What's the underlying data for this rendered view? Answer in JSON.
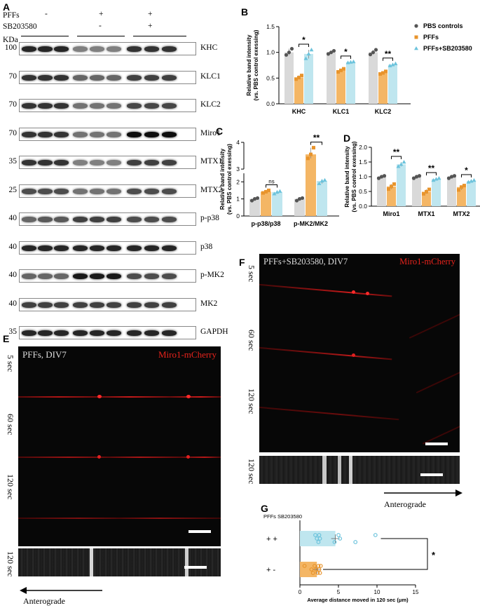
{
  "panel_letters": {
    "a": "A",
    "b": "B",
    "c": "C",
    "d": "D",
    "e": "E",
    "f": "F",
    "g": "G"
  },
  "western": {
    "kda_label": "KDa",
    "treatments": [
      {
        "name": "PFFs",
        "signs": [
          "-",
          "+",
          "+"
        ]
      },
      {
        "name": "SB203580",
        "signs": [
          "",
          "-",
          "+"
        ]
      }
    ],
    "blots": [
      {
        "mw": "100",
        "protein": "KHC",
        "intensity": [
          0.85,
          0.85,
          0.85,
          0.5,
          0.5,
          0.5,
          0.8,
          0.8,
          0.8
        ]
      },
      {
        "mw": "70",
        "protein": "KLC1",
        "intensity": [
          0.8,
          0.8,
          0.8,
          0.6,
          0.6,
          0.6,
          0.75,
          0.75,
          0.75
        ]
      },
      {
        "mw": "70",
        "protein": "KLC2",
        "intensity": [
          0.8,
          0.8,
          0.8,
          0.55,
          0.55,
          0.55,
          0.72,
          0.72,
          0.72
        ]
      },
      {
        "mw": "70",
        "protein": "Miro1",
        "intensity": [
          0.8,
          0.8,
          0.8,
          0.55,
          0.55,
          0.55,
          0.95,
          0.95,
          0.95
        ]
      },
      {
        "mw": "35",
        "protein": "MTX1",
        "intensity": [
          0.8,
          0.8,
          0.8,
          0.5,
          0.5,
          0.5,
          0.75,
          0.75,
          0.75
        ]
      },
      {
        "mw": "25",
        "protein": "MTX2",
        "intensity": [
          0.7,
          0.7,
          0.7,
          0.55,
          0.55,
          0.55,
          0.7,
          0.7,
          0.7
        ]
      },
      {
        "mw": "40",
        "protein": "p-p38",
        "intensity": [
          0.6,
          0.65,
          0.65,
          0.75,
          0.75,
          0.75,
          0.7,
          0.7,
          0.7
        ]
      },
      {
        "mw": "40",
        "protein": "p38",
        "intensity": [
          0.85,
          0.85,
          0.85,
          0.85,
          0.85,
          0.85,
          0.85,
          0.85,
          0.85
        ]
      },
      {
        "mw": "40",
        "protein": "p-MK2",
        "intensity": [
          0.6,
          0.6,
          0.6,
          0.9,
          0.9,
          0.9,
          0.7,
          0.7,
          0.7
        ]
      },
      {
        "mw": "40",
        "protein": "MK2",
        "intensity": [
          0.75,
          0.75,
          0.75,
          0.75,
          0.75,
          0.75,
          0.75,
          0.75,
          0.75
        ]
      },
      {
        "mw": "35",
        "protein": "GAPDH",
        "intensity": [
          0.85,
          0.85,
          0.85,
          0.85,
          0.85,
          0.85,
          0.85,
          0.85,
          0.85
        ]
      }
    ]
  },
  "colors": {
    "pbs": "#d9d9d9",
    "pffs": "#f4b665",
    "sb": "#bfe6ef",
    "pbs_dot": "#555555",
    "pffs_dot": "#e8942c",
    "sb_dot": "#6cc3dc",
    "red_label": "#e8231c"
  },
  "chart_data": [
    {
      "panel": "B",
      "type": "bar",
      "categories": [
        "KHC",
        "KLC1",
        "KLC2"
      ],
      "series": [
        {
          "name": "PBS controls",
          "values": [
            1.0,
            1.0,
            1.0
          ],
          "points": [
            [
              0.95,
              1.0,
              1.07
            ],
            [
              0.97,
              1.0,
              1.03
            ],
            [
              0.96,
              1.0,
              1.05
            ]
          ]
        },
        {
          "name": "PFFs",
          "values": [
            0.51,
            0.65,
            0.6
          ],
          "points": [
            [
              0.48,
              0.51,
              0.55
            ],
            [
              0.62,
              0.65,
              0.68
            ],
            [
              0.58,
              0.6,
              0.63
            ]
          ]
        },
        {
          "name": "PFFs+SB203580",
          "values": [
            0.97,
            0.81,
            0.76
          ],
          "points": [
            [
              0.88,
              0.97,
              1.05
            ],
            [
              0.8,
              0.81,
              0.82
            ],
            [
              0.74,
              0.76,
              0.78
            ]
          ]
        }
      ],
      "ylabel": "Relative band intensity\n(vs. PBS control exessing)",
      "ylim": [
        0,
        1.5
      ],
      "yticks": [
        0.0,
        0.5,
        1.0,
        1.5
      ],
      "significance": [
        "*",
        "*",
        "**"
      ],
      "legend": "top-right"
    },
    {
      "panel": "C",
      "type": "bar",
      "categories": [
        "p-p38/p38",
        "p-MK2/MK2"
      ],
      "series": [
        {
          "name": "PBS controls",
          "values": [
            1.0,
            1.0
          ],
          "points": [
            [
              0.9,
              1.0,
              1.05
            ],
            [
              0.9,
              1.0,
              1.05
            ]
          ]
        },
        {
          "name": "PFFs",
          "values": [
            1.42,
            3.55
          ],
          "points": [
            [
              1.35,
              1.42,
              1.5
            ],
            [
              3.4,
              3.55,
              3.8
            ]
          ]
        },
        {
          "name": "PFFs+SB203580",
          "values": [
            1.4,
            2.05
          ],
          "points": [
            [
              1.3,
              1.4,
              1.45
            ],
            [
              1.9,
              2.05,
              2.1
            ]
          ]
        }
      ],
      "ylabel": "Relative band intensity\n(vs. PBS control exessing)",
      "ylim": [
        0,
        4
      ],
      "yticks": [
        0,
        1,
        2,
        3,
        4
      ],
      "axis_break": [
        2.5,
        3
      ],
      "significance": [
        "ns",
        "**"
      ]
    },
    {
      "panel": "D",
      "type": "bar",
      "categories": [
        "Miro1",
        "MTX1",
        "MTX2"
      ],
      "series": [
        {
          "name": "PBS controls",
          "values": [
            1.0,
            1.0,
            1.0
          ],
          "points": [
            [
              0.95,
              1.0,
              1.03
            ],
            [
              0.95,
              1.0,
              1.03
            ],
            [
              0.95,
              1.0,
              1.03
            ]
          ]
        },
        {
          "name": "PFFs",
          "values": [
            0.67,
            0.49,
            0.65
          ],
          "points": [
            [
              0.58,
              0.67,
              0.75
            ],
            [
              0.42,
              0.49,
              0.57
            ],
            [
              0.55,
              0.65,
              0.7
            ]
          ]
        },
        {
          "name": "PFFs+SB203580",
          "values": [
            1.42,
            0.92,
            0.85
          ],
          "points": [
            [
              1.35,
              1.42,
              1.5
            ],
            [
              0.88,
              0.92,
              0.95
            ],
            [
              0.82,
              0.85,
              0.88
            ]
          ]
        }
      ],
      "ylabel": "Relative band intensity\n(vs. PBS control exessing)",
      "ylim": [
        0,
        2.0
      ],
      "yticks": [
        0.0,
        0.5,
        1.0,
        1.5,
        2.0
      ],
      "significance": [
        "**",
        "**",
        "*"
      ]
    },
    {
      "panel": "G",
      "type": "bar",
      "orientation": "horizontal",
      "header": "PFFs  SB203580",
      "categories": [
        "+   +",
        "+   -"
      ],
      "values": [
        4.6,
        2.2
      ],
      "points": [
        [
          2.0,
          2.2,
          2.4,
          2.5,
          2.6,
          4.5,
          5.0,
          5.2,
          7.2,
          9.8
        ],
        [
          0.6,
          1.5,
          1.7,
          1.9,
          2.1,
          2.3,
          2.4,
          2.5,
          2.6,
          2.7
        ]
      ],
      "xlabel": "Average distance moved in 120 sec (μm)",
      "xlim": [
        0,
        15
      ],
      "xticks": [
        0,
        5,
        10,
        15
      ],
      "significance": "*"
    }
  ],
  "legend": {
    "pbs": "PBS controls",
    "pffs": "PFFs",
    "sb": "PFFs+SB203580"
  },
  "panel_e": {
    "title": "PFFs, DIV7",
    "marker": "Miro1-mCherry",
    "times": [
      "5 sec",
      "60 sec",
      "120 sec"
    ],
    "kymo_label": "120 sec",
    "direction": "Anterograde"
  },
  "panel_f": {
    "title": "PFFs+SB203580, DIV7",
    "marker": "Miro1-mCherry",
    "times": [
      "5 sec",
      "60 sec",
      "120 sec"
    ],
    "kymo_label": "120 sec",
    "direction": "Anterograde"
  }
}
